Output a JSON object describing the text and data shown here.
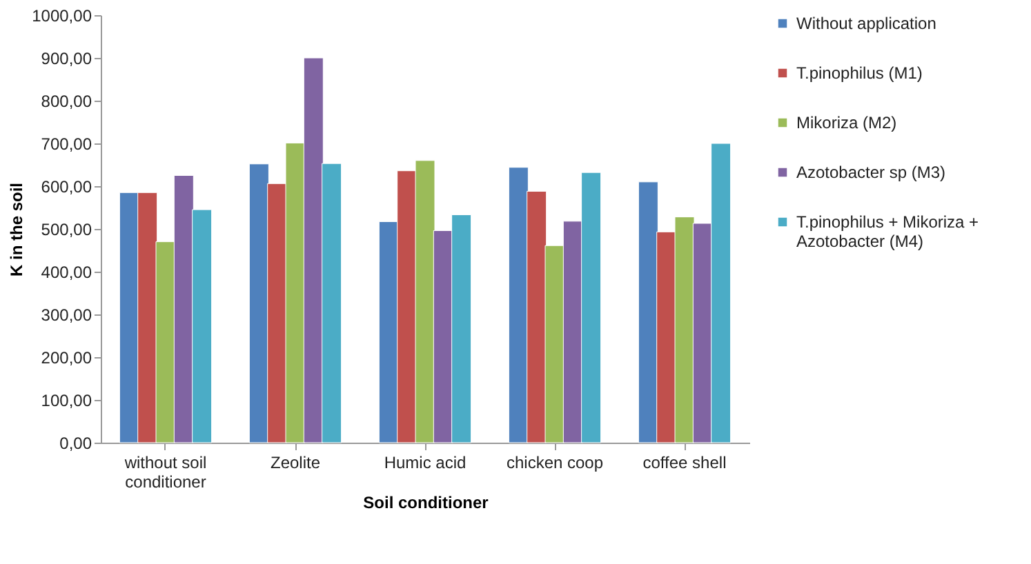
{
  "chart_data": {
    "type": "bar",
    "xlabel": "Soil conditioner",
    "ylabel": "K in the soil",
    "categories": [
      "without soil conditioner",
      "Zeolite",
      "Humic acid",
      "chicken coop",
      "coffee shell"
    ],
    "series": [
      {
        "name": "Without application",
        "color": "#4f81bd",
        "values": [
          585,
          652,
          517,
          644,
          610
        ]
      },
      {
        "name": "T.pinophilus (M1)",
        "color": "#c0504d",
        "values": [
          585,
          606,
          636,
          588,
          493
        ]
      },
      {
        "name": "Mikoriza (M2)",
        "color": "#9bbb59",
        "values": [
          470,
          701,
          660,
          461,
          528
        ]
      },
      {
        "name": "Azotobacter sp (M3)",
        "color": "#8064a2",
        "values": [
          625,
          900,
          496,
          518,
          513
        ]
      },
      {
        "name": "T.pinophilus + Mikoriza + Azotobacter (M4)",
        "color": "#4bacc6",
        "values": [
          545,
          653,
          533,
          632,
          700
        ]
      }
    ],
    "ylim": [
      0,
      1000
    ],
    "yticks": [
      {
        "value": 0,
        "label": "0,00"
      },
      {
        "value": 100,
        "label": "100,00"
      },
      {
        "value": 200,
        "label": "200,00"
      },
      {
        "value": 300,
        "label": "300,00"
      },
      {
        "value": 400,
        "label": "400,00"
      },
      {
        "value": 500,
        "label": "500,00"
      },
      {
        "value": 600,
        "label": "600,00"
      },
      {
        "value": 700,
        "label": "700,00"
      },
      {
        "value": 800,
        "label": "800,00"
      },
      {
        "value": 900,
        "label": "900,00"
      },
      {
        "value": 1000,
        "label": "1000,00"
      }
    ],
    "grid": false,
    "legend": "right"
  }
}
